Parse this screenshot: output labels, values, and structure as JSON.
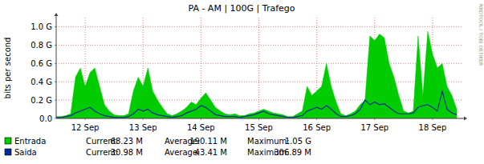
{
  "chart_data": {
    "type": "area",
    "title": "PA - AM | 100G | Trafego",
    "y_label": "bits per second",
    "annotations": [
      "RRDTOOL / TOBI OETIKER"
    ],
    "categories": [
      null,
      null,
      null,
      null,
      null,
      null,
      "12 Sep",
      null,
      null,
      null,
      null,
      null,
      null,
      null,
      null,
      null,
      null,
      null,
      "13 Sep",
      null,
      null,
      null,
      null,
      null,
      null,
      null,
      null,
      null,
      null,
      null,
      "14 Sep",
      null,
      null,
      null,
      null,
      null,
      null,
      null,
      null,
      null,
      null,
      null,
      "15 Sep",
      null,
      null,
      null,
      null,
      null,
      null,
      null,
      null,
      null,
      null,
      null,
      "16 Sep",
      null,
      null,
      null,
      null,
      null,
      null,
      null,
      null,
      null,
      null,
      null,
      "17 Sep",
      null,
      null,
      null,
      null,
      null,
      null,
      null,
      null,
      null,
      null,
      null,
      "18 Sep",
      null,
      null,
      null,
      null,
      null
    ],
    "series": [
      {
        "name": "Entrada",
        "color": "#00cc00",
        "type": "area",
        "values": [
          20000000.0,
          20000000.0,
          30000000.0,
          50000000.0,
          450000000.0,
          550000000.0,
          350000000.0,
          500000000.0,
          550000000.0,
          350000000.0,
          150000000.0,
          80000000.0,
          40000000.0,
          30000000.0,
          30000000.0,
          50000000.0,
          300000000.0,
          450000000.0,
          350000000.0,
          550000000.0,
          300000000.0,
          200000000.0,
          120000000.0,
          50000000.0,
          30000000.0,
          50000000.0,
          80000000.0,
          120000000.0,
          180000000.0,
          150000000.0,
          220000000.0,
          280000000.0,
          200000000.0,
          120000000.0,
          80000000.0,
          50000000.0,
          40000000.0,
          50000000.0,
          30000000.0,
          30000000.0,
          50000000.0,
          60000000.0,
          80000000.0,
          100000000.0,
          80000000.0,
          60000000.0,
          50000000.0,
          40000000.0,
          20000000.0,
          20000000.0,
          50000000.0,
          80000000.0,
          350000000.0,
          250000000.0,
          300000000.0,
          350000000.0,
          600000000.0,
          350000000.0,
          180000000.0,
          50000000.0,
          30000000.0,
          50000000.0,
          80000000.0,
          150000000.0,
          200000000.0,
          900000000.0,
          850000000.0,
          920000000.0,
          880000000.0,
          600000000.0,
          450000000.0,
          250000000.0,
          80000000.0,
          60000000.0,
          80000000.0,
          900000000.0,
          250000000.0,
          950000000.0,
          700000000.0,
          550000000.0,
          600000000.0,
          350000000.0,
          250000000.0,
          100000000.0
        ],
        "stats": [
          {
            "label": "Current:",
            "value": 68230000,
            "value_label": "68.23 M"
          },
          {
            "label": "Average:",
            "value": 190110000,
            "value_label": "190.11 M"
          },
          {
            "label": "Maximum:",
            "value": 1050000000,
            "value_label": "1.05 G"
          }
        ]
      },
      {
        "name": "Saida",
        "color": "#002a97",
        "type": "line",
        "values": [
          10000000.0,
          10000000.0,
          20000000.0,
          30000000.0,
          60000000.0,
          80000000.0,
          100000000.0,
          120000000.0,
          80000000.0,
          50000000.0,
          30000000.0,
          20000000.0,
          10000000.0,
          10000000.0,
          10000000.0,
          20000000.0,
          50000000.0,
          100000000.0,
          80000000.0,
          100000000.0,
          60000000.0,
          40000000.0,
          30000000.0,
          20000000.0,
          10000000.0,
          20000000.0,
          30000000.0,
          60000000.0,
          80000000.0,
          100000000.0,
          140000000.0,
          120000000.0,
          80000000.0,
          40000000.0,
          30000000.0,
          20000000.0,
          20000000.0,
          20000000.0,
          10000000.0,
          20000000.0,
          30000000.0,
          40000000.0,
          60000000.0,
          80000000.0,
          50000000.0,
          40000000.0,
          30000000.0,
          20000000.0,
          10000000.0,
          10000000.0,
          20000000.0,
          30000000.0,
          80000000.0,
          100000000.0,
          120000000.0,
          100000000.0,
          140000000.0,
          100000000.0,
          50000000.0,
          20000000.0,
          20000000.0,
          30000000.0,
          50000000.0,
          100000000.0,
          200000000.0,
          150000000.0,
          180000000.0,
          150000000.0,
          160000000.0,
          120000000.0,
          80000000.0,
          50000000.0,
          50000000.0,
          50000000.0,
          60000000.0,
          120000000.0,
          140000000.0,
          150000000.0,
          120000000.0,
          80000000.0,
          300000000.0,
          100000000.0,
          60000000.0,
          40000000.0
        ],
        "stats": [
          {
            "label": "Current:",
            "value": 30980000,
            "value_label": "30.98 M"
          },
          {
            "label": "Average:",
            "value": 43410000,
            "value_label": "43.41 M"
          },
          {
            "label": "Maximum:",
            "value": 306890000,
            "value_label": "306.89 M"
          }
        ]
      }
    ],
    "ylim": [
      0,
      1100000000.0
    ],
    "yticks": [
      {
        "value": 0,
        "label": "0.0"
      },
      {
        "value": 200000000.0,
        "label": "0.2 G"
      },
      {
        "value": 400000000.0,
        "label": "0.4 G"
      },
      {
        "value": 600000000.0,
        "label": "0.6 G"
      },
      {
        "value": 800000000.0,
        "label": "0.8 G"
      },
      {
        "value": 1000000000.0,
        "label": "1.0 G"
      }
    ],
    "grid": true
  }
}
